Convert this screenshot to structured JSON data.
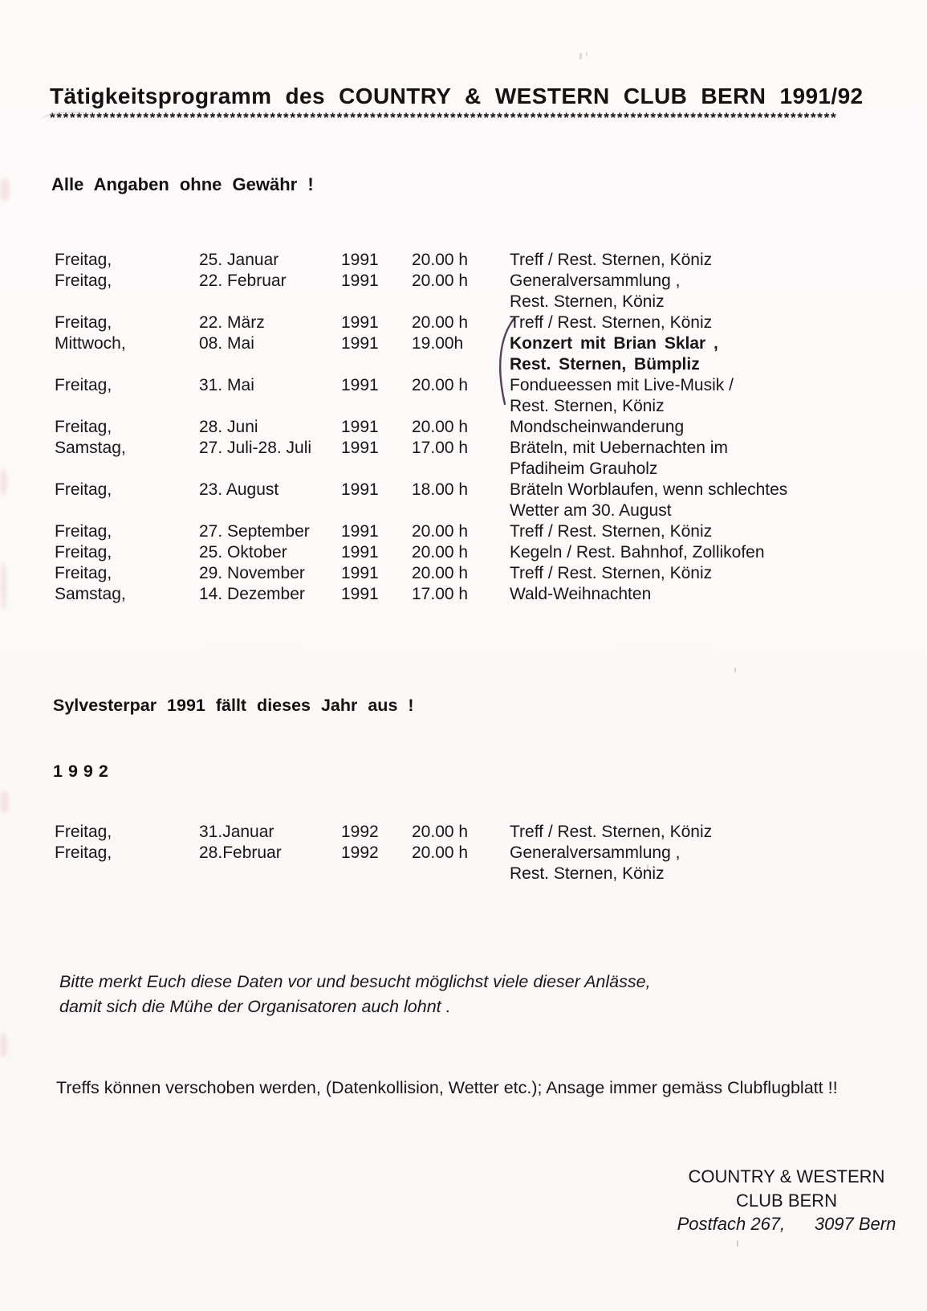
{
  "header": {
    "title": "Tätigkeitsprogramm des COUNTRY & WESTERN CLUB BERN  1991/92",
    "underline": "**********************************************************************************************************************"
  },
  "disclaimer": "Alle Angaben ohne Gewähr !",
  "schedule_1991": [
    {
      "day": "Freitag,",
      "date": "25. Januar",
      "year": "1991",
      "time": "20.00 h",
      "desc": [
        "Treff / Rest. Sternen, Köniz"
      ]
    },
    {
      "day": "Freitag,",
      "date": "22. Februar",
      "year": "1991",
      "time": "20.00 h",
      "desc": [
        "Generalversammlung ,",
        "Rest. Sternen, Köniz"
      ]
    },
    {
      "day": "Freitag,",
      "date": "22. März",
      "year": "1991",
      "time": "20.00 h",
      "desc": [
        "Treff / Rest. Sternen, Köniz"
      ]
    },
    {
      "day": "Mittwoch,",
      "date": "08. Mai",
      "year": "1991",
      "time": "19.00h",
      "desc": [
        "Konzert mit Brian Sklar ,",
        "Rest. Sternen, Bümpliz"
      ],
      "bold": true
    },
    {
      "day": "Freitag,",
      "date": "31. Mai",
      "year": "1991",
      "time": "20.00 h",
      "desc": [
        "Fondueessen mit Live-Musik /",
        "Rest. Sternen, Köniz"
      ]
    },
    {
      "day": "Freitag,",
      "date": "28. Juni",
      "year": "1991",
      "time": "20.00 h",
      "desc": [
        "Mondscheinwanderung"
      ]
    },
    {
      "day": "Samstag,",
      "date": "27. Juli-28. Juli",
      "year": "1991",
      "time": "17.00 h",
      "desc": [
        "Bräteln, mit Uebernachten im",
        "Pfadiheim Grauholz"
      ]
    },
    {
      "day": "Freitag,",
      "date": "23. August",
      "year": "1991",
      "time": "18.00 h",
      "desc": [
        "Bräteln Worblaufen, wenn schlechtes",
        "Wetter am 30. August"
      ]
    },
    {
      "day": "Freitag,",
      "date": "27. September",
      "year": "1991",
      "time": "20.00 h",
      "desc": [
        "Treff / Rest. Sternen, Köniz"
      ]
    },
    {
      "day": "Freitag,",
      "date": "25. Oktober",
      "year": "1991",
      "time": "20.00 h",
      "desc": [
        "Kegeln / Rest. Bahnhof, Zollikofen"
      ]
    },
    {
      "day": "Freitag,",
      "date": "29. November",
      "year": "1991",
      "time": "20.00 h",
      "desc": [
        "Treff / Rest. Sternen, Köniz"
      ]
    },
    {
      "day": "Samstag,",
      "date": "14. Dezember",
      "year": "1991",
      "time": "17.00 h",
      "desc": [
        "Wald-Weihnachten"
      ]
    }
  ],
  "cancel_note": "Sylvesterpar 1991 fällt dieses Jahr aus !",
  "year_1992_heading": "1992",
  "schedule_1992": [
    {
      "day": "Freitag,",
      "date": "31.Januar",
      "year": "1992",
      "time": "20.00 h",
      "desc": [
        "Treff / Rest. Sternen, Köniz"
      ]
    },
    {
      "day": "Freitag,",
      "date": "28.Februar",
      "year": "1992",
      "time": "20.00 h",
      "desc": [
        "Generalversammlung ,",
        "Rest. Sternen, Köniz"
      ]
    }
  ],
  "reminder": {
    "line1": "Bitte merkt Euch diese Daten vor und besucht möglichst viele dieser Anlässe,",
    "line2": "damit sich die Mühe der Organisatoren auch lohnt ."
  },
  "note": "Treffs können verschoben werden, (Datenkollision, Wetter etc.); Ansage immer gemäss Clubflugblatt !!",
  "footer": {
    "line1": "COUNTRY & WESTERN",
    "line2": "CLUB BERN",
    "line3": "Postfach 267,      3097 Bern"
  },
  "colors": {
    "text": "#1a1516",
    "pen_mark": "#3d1f3a",
    "paper": "#fcfbfa"
  }
}
